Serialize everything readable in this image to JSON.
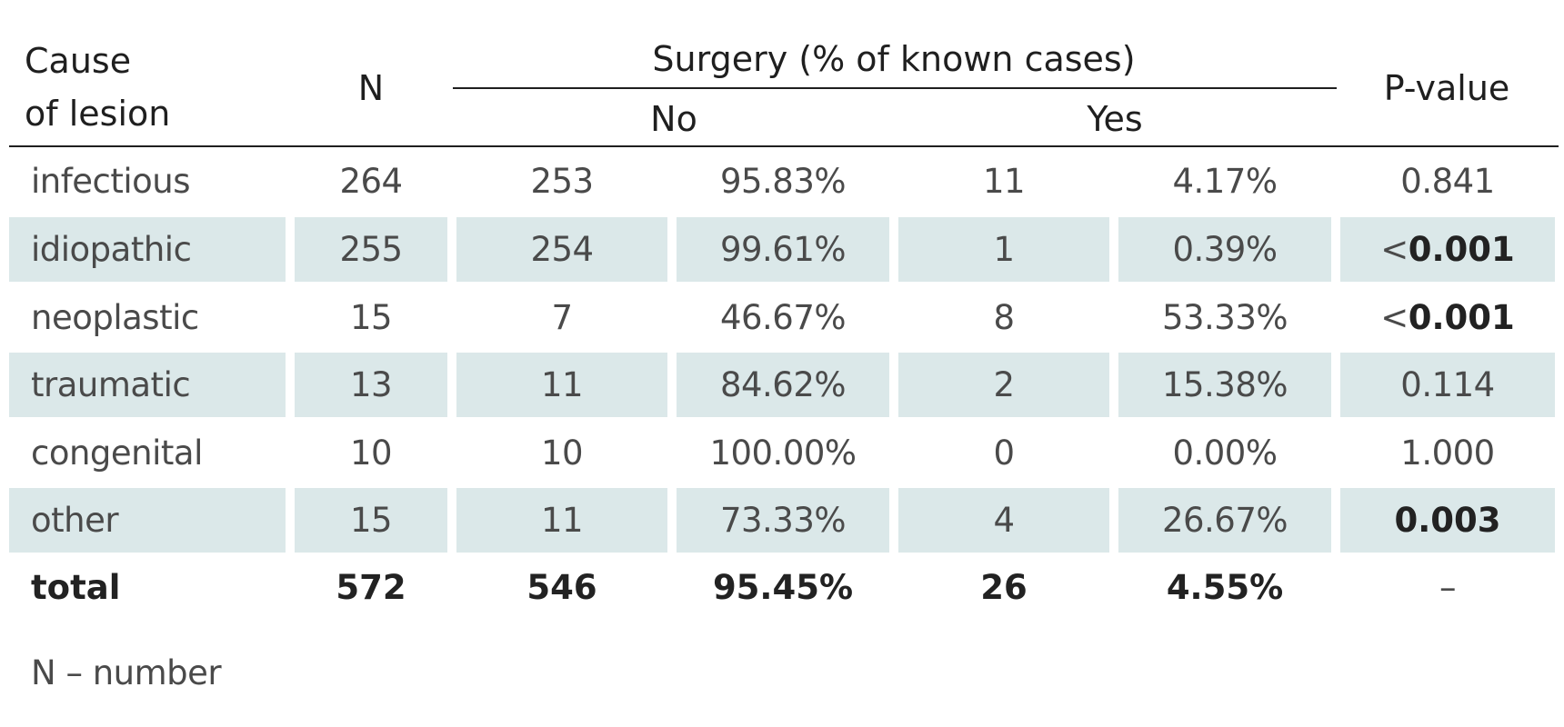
{
  "table": {
    "header": {
      "cause_line1": "Cause",
      "cause_line2": "of lesion",
      "n": "N",
      "surgery_group": "Surgery (% of known cases)",
      "no": "No",
      "yes": "Yes",
      "p_value": "P-value"
    },
    "rows": [
      {
        "cause": "infectious",
        "n": "264",
        "no_n": "253",
        "no_pct": "95.83%",
        "yes_n": "11",
        "yes_pct": "4.17%",
        "p_prefix": "",
        "p": "0.841",
        "p_bold": false,
        "shaded": false
      },
      {
        "cause": "idiopathic",
        "n": "255",
        "no_n": "254",
        "no_pct": "99.61%",
        "yes_n": "1",
        "yes_pct": "0.39%",
        "p_prefix": "< ",
        "p": "0.001",
        "p_bold": true,
        "shaded": true
      },
      {
        "cause": "neoplastic",
        "n": "15",
        "no_n": "7",
        "no_pct": "46.67%",
        "yes_n": "8",
        "yes_pct": "53.33%",
        "p_prefix": "< ",
        "p": "0.001",
        "p_bold": true,
        "shaded": false
      },
      {
        "cause": "traumatic",
        "n": "13",
        "no_n": "11",
        "no_pct": "84.62%",
        "yes_n": "2",
        "yes_pct": "15.38%",
        "p_prefix": "",
        "p": "0.114",
        "p_bold": false,
        "shaded": true
      },
      {
        "cause": "congenital",
        "n": "10",
        "no_n": "10",
        "no_pct": "100.00%",
        "yes_n": "0",
        "yes_pct": "0.00%",
        "p_prefix": "",
        "p": "1.000",
        "p_bold": false,
        "shaded": false
      },
      {
        "cause": "other",
        "n": "15",
        "no_n": "11",
        "no_pct": "73.33%",
        "yes_n": "4",
        "yes_pct": "26.67%",
        "p_prefix": "",
        "p": "0.003",
        "p_bold": true,
        "shaded": true
      },
      {
        "cause": "total",
        "n": "572",
        "no_n": "546",
        "no_pct": "95.45%",
        "yes_n": "26",
        "yes_pct": "4.55%",
        "p_prefix": "",
        "p": "–",
        "p_bold": false,
        "shaded": false,
        "bold": true
      }
    ],
    "footnote": "N – number",
    "colors": {
      "shade": "#dbe8e9",
      "text": "#4a4a4a",
      "rule": "#1f1f1f"
    }
  }
}
